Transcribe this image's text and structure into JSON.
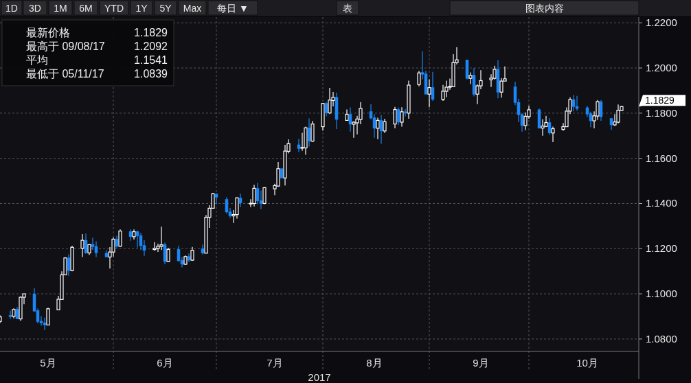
{
  "chart_data": {
    "type": "candlestick",
    "xlabel": "2017",
    "x": [
      "2017-04-28",
      "2017-05-01",
      "2017-05-02",
      "2017-05-03",
      "2017-05-04",
      "2017-05-05",
      "2017-05-08",
      "2017-05-09",
      "2017-05-10",
      "2017-05-11",
      "2017-05-12",
      "2017-05-15",
      "2017-05-16",
      "2017-05-17",
      "2017-05-18",
      "2017-05-19",
      "2017-05-22",
      "2017-05-23",
      "2017-05-24",
      "2017-05-25",
      "2017-05-26",
      "2017-05-29",
      "2017-05-30",
      "2017-05-31",
      "2017-06-01",
      "2017-06-02",
      "2017-06-05",
      "2017-06-06",
      "2017-06-07",
      "2017-06-08",
      "2017-06-09",
      "2017-06-12",
      "2017-06-13",
      "2017-06-14",
      "2017-06-15",
      "2017-06-16",
      "2017-06-19",
      "2017-06-20",
      "2017-06-21",
      "2017-06-22",
      "2017-06-23",
      "2017-06-26",
      "2017-06-27",
      "2017-06-28",
      "2017-06-29",
      "2017-06-30",
      "2017-07-03",
      "2017-07-04",
      "2017-07-05",
      "2017-07-06",
      "2017-07-07",
      "2017-07-10",
      "2017-07-11",
      "2017-07-12",
      "2017-07-13",
      "2017-07-14",
      "2017-07-17",
      "2017-07-18",
      "2017-07-19",
      "2017-07-20",
      "2017-07-21",
      "2017-07-24",
      "2017-07-25",
      "2017-07-26",
      "2017-07-27",
      "2017-07-28",
      "2017-07-31",
      "2017-08-01",
      "2017-08-02",
      "2017-08-03",
      "2017-08-04",
      "2017-08-07",
      "2017-08-08",
      "2017-08-09",
      "2017-08-10",
      "2017-08-11",
      "2017-08-14",
      "2017-08-15",
      "2017-08-16",
      "2017-08-17",
      "2017-08-18",
      "2017-08-21",
      "2017-08-22",
      "2017-08-23",
      "2017-08-24",
      "2017-08-25",
      "2017-08-28",
      "2017-08-29",
      "2017-08-30",
      "2017-08-31",
      "2017-09-01",
      "2017-09-04",
      "2017-09-05",
      "2017-09-06",
      "2017-09-07",
      "2017-09-08",
      "2017-09-11",
      "2017-09-12",
      "2017-09-13",
      "2017-09-14",
      "2017-09-15",
      "2017-09-18",
      "2017-09-19",
      "2017-09-20",
      "2017-09-21",
      "2017-09-22",
      "2017-09-25",
      "2017-09-26",
      "2017-09-27",
      "2017-09-28",
      "2017-09-29",
      "2017-10-02",
      "2017-10-03",
      "2017-10-04",
      "2017-10-05",
      "2017-10-06",
      "2017-10-09",
      "2017-10-10",
      "2017-10-11",
      "2017-10-12",
      "2017-10-13",
      "2017-10-16",
      "2017-10-17",
      "2017-10-18",
      "2017-10-19",
      "2017-10-20",
      "2017-10-23",
      "2017-10-24",
      "2017-10-25",
      "2017-10-26"
    ],
    "ohlc": [
      [
        1.0878,
        1.0905,
        1.087,
        1.0898
      ],
      [
        1.0905,
        1.0926,
        1.0889,
        1.0899
      ],
      [
        1.09,
        1.0936,
        1.0892,
        1.0931
      ],
      [
        1.0932,
        1.0941,
        1.0889,
        1.0889
      ],
      [
        1.0889,
        1.0989,
        1.088,
        1.0985
      ],
      [
        1.0985,
        1.1,
        1.0954,
        1.1
      ],
      [
        1.1,
        1.1025,
        1.0921,
        1.0923
      ],
      [
        1.0926,
        1.0935,
        1.0869,
        1.0877
      ],
      [
        1.0879,
        1.0901,
        1.0859,
        1.0871
      ],
      [
        1.0872,
        1.0895,
        1.0839,
        1.0862
      ],
      [
        1.0862,
        1.0938,
        1.0862,
        1.0934
      ],
      [
        1.0929,
        1.0991,
        1.0929,
        1.0976
      ],
      [
        1.0975,
        1.11,
        1.0975,
        1.1084
      ],
      [
        1.1084,
        1.1162,
        1.1084,
        1.1159
      ],
      [
        1.1159,
        1.1175,
        1.108,
        1.1103
      ],
      [
        1.1103,
        1.1213,
        1.11,
        1.1206
      ],
      [
        1.1202,
        1.1265,
        1.1163,
        1.1237
      ],
      [
        1.1237,
        1.1267,
        1.1177,
        1.1181
      ],
      [
        1.1181,
        1.1218,
        1.1172,
        1.1218
      ],
      [
        1.1219,
        1.1249,
        1.1195,
        1.1208
      ],
      [
        1.121,
        1.1233,
        1.1163,
        1.1181
      ],
      [
        1.118,
        1.1193,
        1.1163,
        1.1163
      ],
      [
        1.1163,
        1.1207,
        1.1112,
        1.1185
      ],
      [
        1.1185,
        1.125,
        1.1165,
        1.1242
      ],
      [
        1.1243,
        1.1257,
        1.1205,
        1.121
      ],
      [
        1.1211,
        1.1285,
        1.1208,
        1.1278
      ],
      [
        1.1276,
        1.1285,
        1.1235,
        1.1253
      ],
      [
        1.1253,
        1.1285,
        1.124,
        1.1275
      ],
      [
        1.1276,
        1.128,
        1.1205,
        1.1256
      ],
      [
        1.1258,
        1.127,
        1.1194,
        1.1213
      ],
      [
        1.1214,
        1.1237,
        1.1168,
        1.1192
      ],
      [
        1.1196,
        1.1229,
        1.1191,
        1.1202
      ],
      [
        1.1201,
        1.1222,
        1.1186,
        1.1211
      ],
      [
        1.121,
        1.1297,
        1.1194,
        1.1217
      ],
      [
        1.1218,
        1.1227,
        1.1131,
        1.1143
      ],
      [
        1.1143,
        1.1204,
        1.114,
        1.1197
      ],
      [
        1.1197,
        1.1214,
        1.1143,
        1.1146
      ],
      [
        1.1148,
        1.1164,
        1.1117,
        1.1131
      ],
      [
        1.1131,
        1.117,
        1.1128,
        1.1165
      ],
      [
        1.1165,
        1.1179,
        1.1141,
        1.1149
      ],
      [
        1.1149,
        1.1208,
        1.1146,
        1.1193
      ],
      [
        1.12,
        1.1218,
        1.1174,
        1.118
      ],
      [
        1.118,
        1.1349,
        1.118,
        1.1339
      ],
      [
        1.1339,
        1.1392,
        1.1292,
        1.1379
      ],
      [
        1.1379,
        1.1447,
        1.1379,
        1.1443
      ],
      [
        1.1443,
        1.1445,
        1.1397,
        1.1427
      ],
      [
        1.1418,
        1.1428,
        1.1356,
        1.1362
      ],
      [
        1.1363,
        1.138,
        1.1336,
        1.1345
      ],
      [
        1.1345,
        1.1371,
        1.1314,
        1.1351
      ],
      [
        1.1351,
        1.1427,
        1.1333,
        1.1425
      ],
      [
        1.1425,
        1.1444,
        1.1384,
        1.1402
      ],
      [
        1.1399,
        1.1419,
        1.1384,
        1.1401
      ],
      [
        1.14,
        1.1483,
        1.1387,
        1.1467
      ],
      [
        1.1467,
        1.1491,
        1.1397,
        1.1411
      ],
      [
        1.1413,
        1.1458,
        1.1375,
        1.14
      ],
      [
        1.14,
        1.1473,
        1.1397,
        1.147
      ],
      [
        1.1465,
        1.1487,
        1.1437,
        1.1479
      ],
      [
        1.1477,
        1.1584,
        1.1475,
        1.1554
      ],
      [
        1.1554,
        1.1557,
        1.1511,
        1.1513
      ],
      [
        1.1513,
        1.166,
        1.148,
        1.1632
      ],
      [
        1.1631,
        1.1684,
        1.1622,
        1.1665
      ],
      [
        1.166,
        1.1686,
        1.1628,
        1.1643
      ],
      [
        1.1646,
        1.1713,
        1.1633,
        1.1648
      ],
      [
        1.1646,
        1.174,
        1.1616,
        1.1735
      ],
      [
        1.1735,
        1.1777,
        1.1652,
        1.1676
      ],
      [
        1.1676,
        1.1765,
        1.1673,
        1.1752
      ],
      [
        1.174,
        1.1845,
        1.1723,
        1.1843
      ],
      [
        1.1843,
        1.1848,
        1.1786,
        1.1801
      ],
      [
        1.1801,
        1.1912,
        1.1796,
        1.1858
      ],
      [
        1.1856,
        1.1894,
        1.183,
        1.187
      ],
      [
        1.187,
        1.1891,
        1.173,
        1.1772
      ],
      [
        1.1768,
        1.1816,
        1.1766,
        1.1795
      ],
      [
        1.1795,
        1.1825,
        1.1718,
        1.1751
      ],
      [
        1.1751,
        1.1764,
        1.1691,
        1.176
      ],
      [
        1.1757,
        1.1788,
        1.1706,
        1.1774
      ],
      [
        1.1772,
        1.1849,
        1.1751,
        1.1821
      ],
      [
        1.1807,
        1.184,
        1.1772,
        1.1778
      ],
      [
        1.178,
        1.1796,
        1.1691,
        1.1733
      ],
      [
        1.1733,
        1.178,
        1.1685,
        1.1768
      ],
      [
        1.1768,
        1.1793,
        1.1664,
        1.1721
      ],
      [
        1.1721,
        1.1775,
        1.1712,
        1.1762
      ],
      [
        1.1752,
        1.1828,
        1.1733,
        1.1816
      ],
      [
        1.1816,
        1.1825,
        1.1748,
        1.176
      ],
      [
        1.176,
        1.1826,
        1.174,
        1.1806
      ],
      [
        1.1806,
        1.1818,
        1.1786,
        1.18
      ],
      [
        1.18,
        1.1944,
        1.1775,
        1.1924
      ],
      [
        1.1927,
        1.1987,
        1.1919,
        1.1978
      ],
      [
        1.198,
        1.2074,
        1.1949,
        1.1972
      ],
      [
        1.1974,
        1.1987,
        1.1884,
        1.1884
      ],
      [
        1.1884,
        1.1949,
        1.1826,
        1.1913
      ],
      [
        1.1913,
        1.1983,
        1.1854,
        1.1861
      ],
      [
        1.1861,
        1.1925,
        1.1854,
        1.1897
      ],
      [
        1.1897,
        1.1944,
        1.1871,
        1.1915
      ],
      [
        1.1915,
        1.1953,
        1.1904,
        1.1919
      ],
      [
        1.1917,
        1.2061,
        1.1917,
        1.2024
      ],
      [
        1.2024,
        1.2092,
        1.2016,
        1.2036
      ],
      [
        1.2036,
        1.2036,
        1.1949,
        1.1954
      ],
      [
        1.1954,
        1.198,
        1.1929,
        1.1967
      ],
      [
        1.1968,
        1.2,
        1.1874,
        1.1884
      ],
      [
        1.1884,
        1.1927,
        1.184,
        1.1921
      ],
      [
        1.1921,
        1.199,
        1.1906,
        1.1944
      ],
      [
        1.1948,
        1.1972,
        1.1916,
        1.1955
      ],
      [
        1.1954,
        1.201,
        1.1949,
        1.1994
      ],
      [
        1.1994,
        1.2034,
        1.1866,
        1.1893
      ],
      [
        1.1893,
        1.1955,
        1.1869,
        1.1942
      ],
      [
        1.1942,
        1.2007,
        1.1942,
        1.1952
      ],
      [
        1.1916,
        1.1939,
        1.1835,
        1.1847
      ],
      [
        1.1848,
        1.1864,
        1.176,
        1.1793
      ],
      [
        1.1794,
        1.18,
        1.1718,
        1.1745
      ],
      [
        1.1745,
        1.1803,
        1.1725,
        1.1786
      ],
      [
        1.1785,
        1.1833,
        1.1775,
        1.1815
      ],
      [
        1.1815,
        1.1821,
        1.1733,
        1.1733
      ],
      [
        1.1734,
        1.1773,
        1.17,
        1.1743
      ],
      [
        1.1741,
        1.1788,
        1.1738,
        1.1758
      ],
      [
        1.1758,
        1.1778,
        1.1703,
        1.1712
      ],
      [
        1.1712,
        1.174,
        1.1672,
        1.1731
      ],
      [
        1.1728,
        1.1756,
        1.1722,
        1.174
      ],
      [
        1.174,
        1.1825,
        1.174,
        1.1809
      ],
      [
        1.1809,
        1.187,
        1.1796,
        1.186
      ],
      [
        1.186,
        1.1881,
        1.1808,
        1.1829
      ],
      [
        1.183,
        1.1876,
        1.181,
        1.182
      ],
      [
        1.1824,
        1.1832,
        1.1783,
        1.1796
      ],
      [
        1.1798,
        1.1806,
        1.1738,
        1.1766
      ],
      [
        1.1766,
        1.1808,
        1.1733,
        1.1788
      ],
      [
        1.1787,
        1.1858,
        1.177,
        1.1851
      ],
      [
        1.1851,
        1.1858,
        1.1766,
        1.1784
      ],
      [
        1.1777,
        1.1777,
        1.1726,
        1.1748
      ],
      [
        1.1748,
        1.1796,
        1.1743,
        1.1761
      ],
      [
        1.176,
        1.1838,
        1.1755,
        1.1813
      ],
      [
        1.1812,
        1.1832,
        1.181,
        1.1829
      ]
    ],
    "xlim": [
      "2017-04-28",
      "2017-10-31"
    ],
    "xticks": [
      {
        "value": "2017-05-12",
        "label": "5月"
      },
      {
        "value": "2017-05-31",
        "label": null
      },
      {
        "value": "2017-06-15",
        "label": "6月"
      },
      {
        "value": "2017-06-30",
        "label": null
      },
      {
        "value": "2017-07-17",
        "label": "7月"
      },
      {
        "value": "2017-07-31",
        "label": null
      },
      {
        "value": "2017-08-15",
        "label": "8月"
      },
      {
        "value": "2017-08-31",
        "label": null
      },
      {
        "value": "2017-09-15",
        "label": "9月"
      },
      {
        "value": "2017-09-29",
        "label": null
      },
      {
        "value": "2017-10-16",
        "label": "10月"
      }
    ],
    "ylim": [
      1.0745,
      1.2225
    ],
    "yticks": [
      {
        "value": 1.08,
        "label": "1.0800"
      },
      {
        "value": 1.1,
        "label": "1.1000"
      },
      {
        "value": 1.12,
        "label": "1.1200"
      },
      {
        "value": 1.14,
        "label": "1.1400"
      },
      {
        "value": 1.16,
        "label": "1.1600"
      },
      {
        "value": 1.18,
        "label": "1.1800"
      },
      {
        "value": 1.2,
        "label": "1.2000"
      },
      {
        "value": 1.22,
        "label": "1.2200"
      }
    ],
    "grid": true,
    "annotations": [
      "1D",
      "3D",
      "1M",
      "6M",
      "YTD",
      "1Y",
      "5Y",
      "Max",
      "每日 ▼",
      "表",
      "图表内容",
      "最新价格",
      "1.1829",
      "最高于 09/08/17",
      "1.2092",
      "平均",
      "1.1541",
      "最低于 05/11/17",
      "1.0839",
      "1.1829"
    ]
  }
}
